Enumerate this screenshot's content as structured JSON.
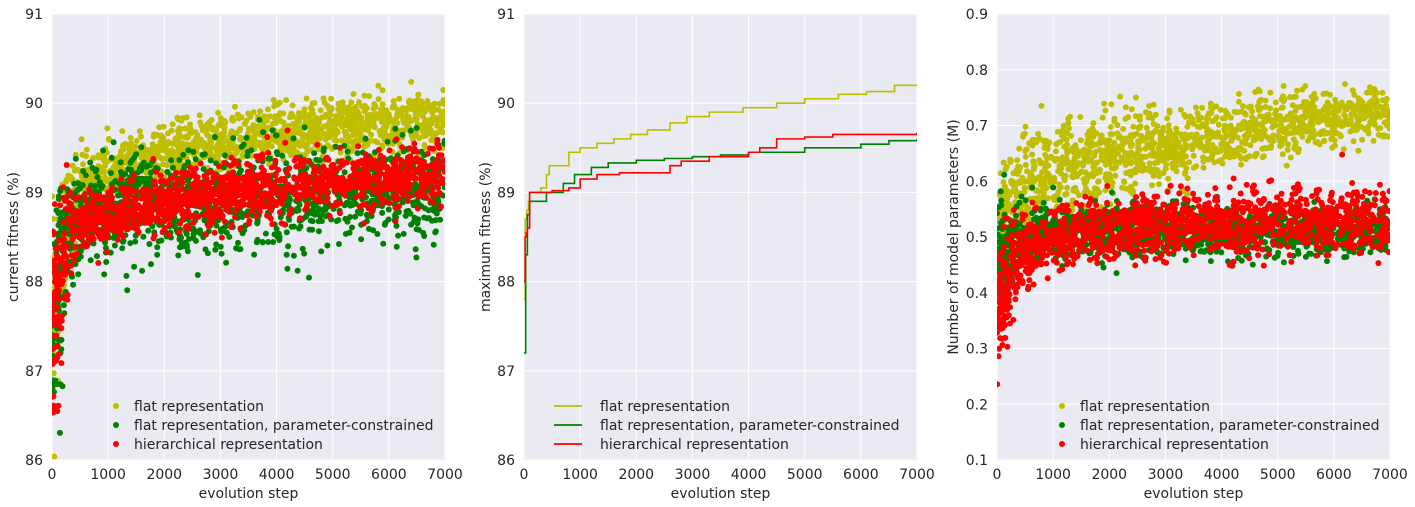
{
  "chart_data": [
    {
      "type": "scatter",
      "xlabel": "evolution step",
      "ylabel": "current fitness (%)",
      "xlim": [
        0,
        7000
      ],
      "ylim": [
        86,
        91
      ],
      "xticks": [
        "0",
        "1000",
        "2000",
        "3000",
        "4000",
        "5000",
        "6000",
        "7000"
      ],
      "yticks": [
        "86",
        "87",
        "88",
        "89",
        "90",
        "91"
      ],
      "grid": true,
      "legend_position": "lower-center",
      "series": [
        {
          "name": "flat representation",
          "color": "#bfbf00",
          "x": [
            0,
            100,
            200,
            300,
            500,
            800,
            1000,
            1500,
            2000,
            2500,
            3000,
            3500,
            4000,
            4500,
            5000,
            5500,
            6000,
            6500,
            7000
          ],
          "center": [
            87.6,
            88.0,
            88.4,
            88.7,
            89.0,
            89.15,
            89.2,
            89.3,
            89.4,
            89.5,
            89.55,
            89.6,
            89.65,
            89.7,
            89.72,
            89.75,
            89.78,
            89.8,
            89.82
          ],
          "spread": [
            0.9,
            0.9,
            0.8,
            0.6,
            0.35,
            0.3,
            0.3,
            0.3,
            0.3,
            0.3,
            0.28,
            0.28,
            0.28,
            0.28,
            0.28,
            0.28,
            0.28,
            0.28,
            0.28
          ]
        },
        {
          "name": "flat representation, parameter-constrained",
          "color": "#008000",
          "x": [
            0,
            100,
            200,
            300,
            500,
            800,
            1000,
            1500,
            2000,
            2500,
            3000,
            3500,
            4000,
            4500,
            5000,
            5500,
            6000,
            6500,
            7000
          ],
          "center": [
            87.5,
            87.9,
            88.3,
            88.55,
            88.7,
            88.8,
            88.8,
            88.85,
            88.85,
            88.9,
            88.9,
            88.95,
            88.95,
            88.95,
            89.0,
            89.0,
            89.0,
            89.0,
            89.0
          ],
          "spread": [
            1.0,
            1.0,
            0.9,
            0.7,
            0.5,
            0.5,
            0.5,
            0.5,
            0.5,
            0.5,
            0.5,
            0.5,
            0.5,
            0.5,
            0.5,
            0.5,
            0.5,
            0.5,
            0.5
          ]
        },
        {
          "name": "hierarchical representation",
          "color": "#ff0000",
          "x": [
            0,
            100,
            200,
            300,
            500,
            800,
            1000,
            1500,
            2000,
            2500,
            3000,
            3500,
            4000,
            4500,
            5000,
            5500,
            6000,
            6500,
            7000
          ],
          "center": [
            87.4,
            87.9,
            88.3,
            88.5,
            88.65,
            88.72,
            88.75,
            88.8,
            88.85,
            88.9,
            88.95,
            89.0,
            89.05,
            89.1,
            89.12,
            89.15,
            89.18,
            89.2,
            89.22
          ],
          "spread": [
            1.2,
            1.1,
            0.9,
            0.6,
            0.35,
            0.3,
            0.3,
            0.3,
            0.3,
            0.3,
            0.3,
            0.3,
            0.3,
            0.3,
            0.3,
            0.3,
            0.3,
            0.3,
            0.3
          ]
        }
      ]
    },
    {
      "type": "line",
      "xlabel": "evolution step",
      "ylabel": "maximum fitness (%)",
      "xlim": [
        0,
        7000
      ],
      "ylim": [
        86,
        91
      ],
      "xticks": [
        "0",
        "1000",
        "2000",
        "3000",
        "4000",
        "5000",
        "6000",
        "7000"
      ],
      "yticks": [
        "86",
        "87",
        "88",
        "89",
        "90",
        "91"
      ],
      "grid": true,
      "legend_position": "lower-center",
      "series": [
        {
          "name": "flat representation",
          "color": "#bfbf00",
          "x": [
            0,
            20,
            50,
            80,
            100,
            200,
            300,
            400,
            450,
            600,
            800,
            1000,
            1300,
            1600,
            1900,
            2200,
            2600,
            2900,
            3300,
            3900,
            4500,
            5000,
            5600,
            6100,
            6600,
            7000
          ],
          "y": [
            87.8,
            88.7,
            88.8,
            88.9,
            89.0,
            89.0,
            89.05,
            89.2,
            89.3,
            89.3,
            89.45,
            89.5,
            89.55,
            89.6,
            89.65,
            89.7,
            89.78,
            89.85,
            89.9,
            89.95,
            90.0,
            90.05,
            90.1,
            90.13,
            90.2,
            90.2
          ]
        },
        {
          "name": "flat representation, parameter-constrained",
          "color": "#008000",
          "x": [
            0,
            30,
            60,
            100,
            200,
            400,
            500,
            700,
            900,
            1200,
            1500,
            2000,
            2500,
            3000,
            3500,
            4000,
            5000,
            6000,
            6500,
            7000
          ],
          "y": [
            87.2,
            88.3,
            88.75,
            88.9,
            88.9,
            89.0,
            89.0,
            89.1,
            89.2,
            89.28,
            89.33,
            89.36,
            89.38,
            89.4,
            89.42,
            89.45,
            89.5,
            89.54,
            89.58,
            89.6
          ]
        },
        {
          "name": "hierarchical representation",
          "color": "#ff0000",
          "x": [
            0,
            20,
            40,
            60,
            100,
            200,
            500,
            800,
            1000,
            1300,
            1700,
            2600,
            2800,
            3300,
            4000,
            4200,
            4500,
            5000,
            5500,
            6000,
            7000
          ],
          "y": [
            88.0,
            88.5,
            88.55,
            88.6,
            89.0,
            89.0,
            89.02,
            89.05,
            89.15,
            89.2,
            89.22,
            89.3,
            89.35,
            89.4,
            89.45,
            89.5,
            89.6,
            89.62,
            89.65,
            89.65,
            89.67
          ]
        }
      ]
    },
    {
      "type": "scatter",
      "xlabel": "evolution step",
      "ylabel": "Number of model parameters (M)",
      "xlim": [
        0,
        7000
      ],
      "ylim": [
        0.1,
        0.9
      ],
      "xticks": [
        "0",
        "1000",
        "2000",
        "3000",
        "4000",
        "5000",
        "6000",
        "7000"
      ],
      "yticks": [
        "0.1",
        "0.2",
        "0.3",
        "0.4",
        "0.5",
        "0.6",
        "0.7",
        "0.8",
        "0.9"
      ],
      "grid": true,
      "legend_position": "lower-center",
      "series": [
        {
          "name": "flat representation",
          "color": "#bfbf00",
          "x": [
            0,
            200,
            500,
            1000,
            1500,
            2000,
            2500,
            3000,
            3500,
            4000,
            4500,
            5000,
            5500,
            6000,
            6500,
            7000
          ],
          "center": [
            0.5,
            0.55,
            0.6,
            0.62,
            0.63,
            0.64,
            0.65,
            0.66,
            0.67,
            0.68,
            0.69,
            0.7,
            0.71,
            0.71,
            0.72,
            0.72
          ],
          "spread": [
            0.08,
            0.08,
            0.08,
            0.08,
            0.08,
            0.07,
            0.07,
            0.06,
            0.06,
            0.05,
            0.05,
            0.05,
            0.04,
            0.04,
            0.04,
            0.04
          ]
        },
        {
          "name": "flat representation, parameter-constrained",
          "color": "#008000",
          "x": [
            0,
            200,
            500,
            1000,
            2000,
            3000,
            4000,
            5000,
            6000,
            7000
          ],
          "center": [
            0.45,
            0.48,
            0.5,
            0.51,
            0.51,
            0.51,
            0.51,
            0.51,
            0.51,
            0.51
          ],
          "spread": [
            0.1,
            0.08,
            0.05,
            0.04,
            0.04,
            0.04,
            0.04,
            0.04,
            0.04,
            0.04
          ]
        },
        {
          "name": "hierarchical representation",
          "color": "#ff0000",
          "x": [
            0,
            100,
            200,
            300,
            500,
            800,
            1000,
            1500,
            2000,
            3000,
            4000,
            5000,
            6000,
            7000
          ],
          "center": [
            0.36,
            0.38,
            0.4,
            0.44,
            0.47,
            0.49,
            0.5,
            0.51,
            0.515,
            0.52,
            0.525,
            0.53,
            0.53,
            0.53
          ],
          "spread": [
            0.1,
            0.1,
            0.09,
            0.08,
            0.06,
            0.05,
            0.05,
            0.05,
            0.05,
            0.05,
            0.05,
            0.05,
            0.05,
            0.05
          ]
        }
      ]
    }
  ]
}
